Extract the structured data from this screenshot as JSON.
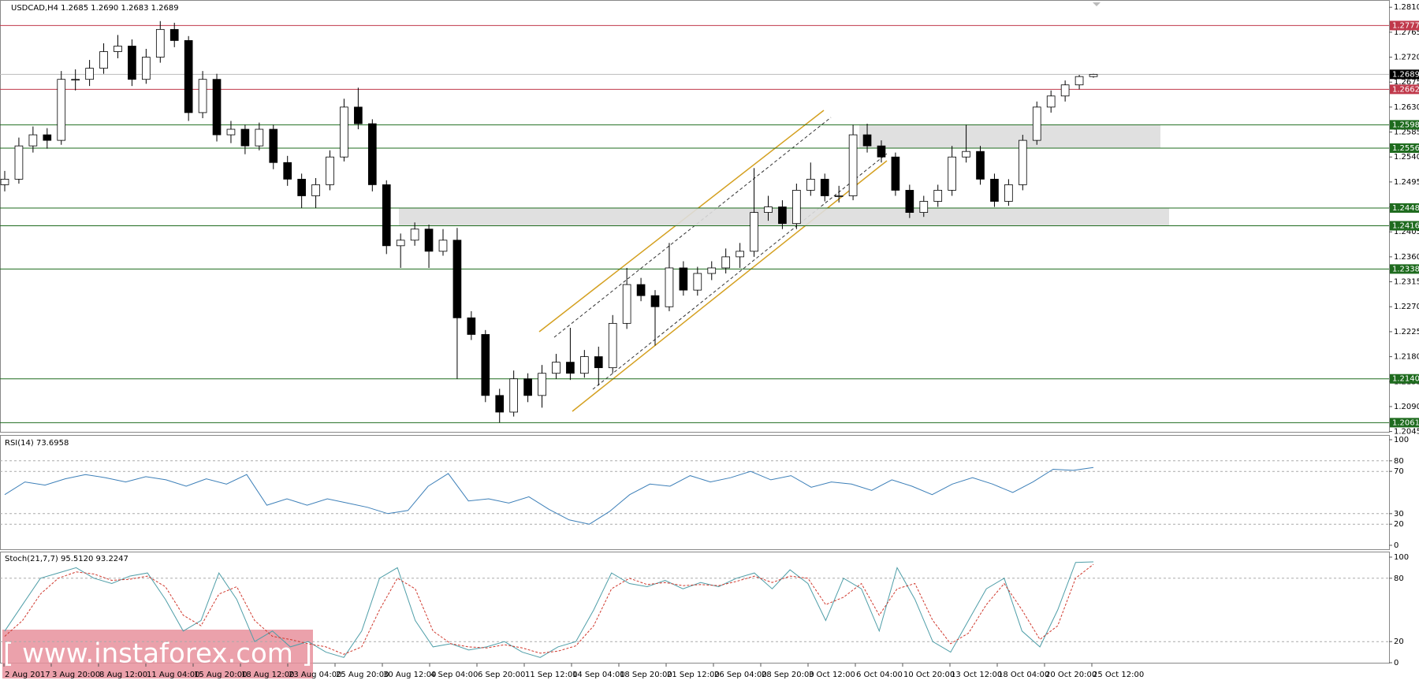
{
  "chart_data": [
    {
      "type": "candlestick",
      "title": "USDCAD,H4  1.2685 1.2690 1.2683 1.2689",
      "ylim": [
        1.2045,
        1.281
      ],
      "yticks": [
        {
          "value": 1.281,
          "label": "1.2810"
        },
        1.2765,
        {
          "value": 1.272,
          "label": "1.2720"
        },
        1.2675,
        {
          "value": 1.263,
          "label": "1.2630"
        },
        1.2585,
        {
          "value": 1.254,
          "label": "1.2540"
        },
        1.2495,
        {
          "value": 1.245,
          "label": "1.2450"
        },
        1.2405,
        {
          "value": 1.236,
          "label": "1.2360"
        },
        1.2315,
        {
          "value": 1.227,
          "label": "1.2270"
        },
        1.2225,
        {
          "value": 1.218,
          "label": "1.2180"
        },
        1.2135,
        {
          "value": 1.209,
          "label": "1.2090"
        },
        1.2045
      ],
      "levels": [
        {
          "value": 1.2777,
          "color": "#c0394b"
        },
        {
          "value": 1.2662,
          "color": "#c0394b"
        },
        {
          "value": 1.2689,
          "color": "#000000"
        },
        {
          "value": 1.2598,
          "color": "#1e6b1e"
        },
        {
          "value": 1.2556,
          "color": "#1e6b1e"
        },
        {
          "value": 1.2448,
          "color": "#1e6b1e"
        },
        {
          "value": 1.2416,
          "color": "#1e6b1e"
        },
        {
          "value": 1.2338,
          "color": "#1e6b1e"
        },
        {
          "value": 1.214,
          "label": "1.2140",
          "color": "#1e6b1e"
        },
        {
          "value": 1.2061,
          "color": "#1e6b1e"
        }
      ],
      "zones": [
        [
          1.2556,
          1.2598
        ],
        [
          1.2416,
          1.2448
        ]
      ],
      "candles": [
        [
          1.249,
          1.2515,
          1.2478,
          1.25
        ],
        [
          1.25,
          1.2575,
          1.2492,
          1.256
        ],
        [
          1.256,
          1.2595,
          1.2548,
          1.258
        ],
        [
          1.258,
          1.2592,
          1.2555,
          1.257
        ],
        [
          1.257,
          1.2695,
          1.2562,
          1.268
        ],
        [
          1.268,
          1.2698,
          1.266,
          1.268
        ],
        [
          1.268,
          1.2715,
          1.2668,
          1.27
        ],
        [
          1.27,
          1.2745,
          1.269,
          1.273
        ],
        [
          1.273,
          1.276,
          1.2718,
          1.274
        ],
        [
          1.274,
          1.2752,
          1.2668,
          1.268
        ],
        [
          1.268,
          1.2735,
          1.2672,
          1.272
        ],
        [
          1.272,
          1.2785,
          1.271,
          1.277
        ],
        [
          1.277,
          1.2782,
          1.2738,
          1.275
        ],
        [
          1.275,
          1.2758,
          1.2605,
          1.262
        ],
        [
          1.262,
          1.2695,
          1.261,
          1.268
        ],
        [
          1.268,
          1.269,
          1.2568,
          1.258
        ],
        [
          1.258,
          1.2605,
          1.2565,
          1.259
        ],
        [
          1.259,
          1.2598,
          1.2545,
          1.256
        ],
        [
          1.256,
          1.2602,
          1.2552,
          1.259
        ],
        [
          1.259,
          1.2598,
          1.2518,
          1.253
        ],
        [
          1.253,
          1.2542,
          1.2488,
          1.25
        ],
        [
          1.25,
          1.251,
          1.2448,
          1.247
        ],
        [
          1.247,
          1.2502,
          1.2448,
          1.249
        ],
        [
          1.249,
          1.2552,
          1.248,
          1.254
        ],
        [
          1.254,
          1.2645,
          1.2532,
          1.263
        ],
        [
          1.263,
          1.2665,
          1.259,
          1.26
        ],
        [
          1.26,
          1.2608,
          1.2478,
          1.249
        ],
        [
          1.249,
          1.2498,
          1.2365,
          1.238
        ],
        [
          1.238,
          1.2402,
          1.234,
          1.239
        ],
        [
          1.239,
          1.2422,
          1.238,
          1.241
        ],
        [
          1.241,
          1.2418,
          1.234,
          1.237
        ],
        [
          1.237,
          1.241,
          1.2362,
          1.239
        ],
        [
          1.239,
          1.2412,
          1.214,
          1.225
        ],
        [
          1.225,
          1.2262,
          1.221,
          1.222
        ],
        [
          1.222,
          1.2228,
          1.2098,
          1.211
        ],
        [
          1.211,
          1.2122,
          1.2061,
          1.208
        ],
        [
          1.208,
          1.2155,
          1.2072,
          1.214
        ],
        [
          1.214,
          1.215,
          1.2098,
          1.211
        ],
        [
          1.211,
          1.2165,
          1.2088,
          1.215
        ],
        [
          1.215,
          1.2185,
          1.214,
          1.217
        ],
        [
          1.217,
          1.2232,
          1.2138,
          1.215
        ],
        [
          1.215,
          1.2192,
          1.2142,
          1.218
        ],
        [
          1.218,
          1.2198,
          1.2128,
          1.216
        ],
        [
          1.216,
          1.2255,
          1.215,
          1.224
        ],
        [
          1.224,
          1.234,
          1.223,
          1.231
        ],
        [
          1.231,
          1.2322,
          1.228,
          1.229
        ],
        [
          1.229,
          1.23,
          1.22,
          1.227
        ],
        [
          1.227,
          1.2385,
          1.2262,
          1.234
        ],
        [
          1.234,
          1.2352,
          1.229,
          1.23
        ],
        [
          1.23,
          1.2342,
          1.229,
          1.233
        ],
        [
          1.233,
          1.2352,
          1.2318,
          1.234
        ],
        [
          1.234,
          1.2375,
          1.233,
          1.236
        ],
        [
          1.236,
          1.2385,
          1.234,
          1.237
        ],
        [
          1.237,
          1.252,
          1.236,
          1.244
        ],
        [
          1.244,
          1.247,
          1.2425,
          1.245
        ],
        [
          1.245,
          1.2462,
          1.241,
          1.242
        ],
        [
          1.242,
          1.2492,
          1.241,
          1.248
        ],
        [
          1.248,
          1.253,
          1.247,
          1.25
        ],
        [
          1.25,
          1.251,
          1.246,
          1.247
        ],
        [
          1.247,
          1.2488,
          1.2458,
          1.247
        ],
        [
          1.247,
          1.2598,
          1.2462,
          1.258
        ],
        [
          1.258,
          1.26,
          1.2548,
          1.256
        ],
        [
          1.256,
          1.257,
          1.253,
          1.254
        ],
        [
          1.254,
          1.2548,
          1.247,
          1.248
        ],
        [
          1.248,
          1.249,
          1.243,
          1.244
        ],
        [
          1.244,
          1.247,
          1.2432,
          1.246
        ],
        [
          1.246,
          1.249,
          1.245,
          1.248
        ],
        [
          1.248,
          1.256,
          1.247,
          1.254
        ],
        [
          1.254,
          1.2598,
          1.253,
          1.255
        ],
        [
          1.255,
          1.256,
          1.249,
          1.25
        ],
        [
          1.25,
          1.251,
          1.245,
          1.246
        ],
        [
          1.246,
          1.25,
          1.2452,
          1.249
        ],
        [
          1.249,
          1.258,
          1.248,
          1.257
        ],
        [
          1.257,
          1.264,
          1.2562,
          1.263
        ],
        [
          1.263,
          1.266,
          1.262,
          1.265
        ],
        [
          1.265,
          1.2678,
          1.264,
          1.267
        ],
        [
          1.267,
          1.2688,
          1.2662,
          1.2685
        ],
        [
          1.2685,
          1.269,
          1.2683,
          1.2689
        ]
      ]
    },
    {
      "type": "line",
      "title": "RSI(14) 73.6958",
      "ylim": [
        0,
        100
      ],
      "yticks": [
        100,
        80,
        70,
        30,
        20,
        0
      ],
      "series": [
        {
          "color": "#3c7fb8",
          "values": [
            48,
            60,
            57,
            63,
            67,
            64,
            60,
            65,
            62,
            56,
            63,
            58,
            67,
            38,
            44,
            38,
            44,
            40,
            36,
            30,
            33,
            56,
            68,
            42,
            44,
            40,
            46,
            34,
            24,
            20,
            32,
            48,
            58,
            56,
            66,
            60,
            64,
            70,
            62,
            66,
            55,
            60,
            58,
            52,
            62,
            56,
            48,
            58,
            64,
            58,
            50,
            60,
            72,
            71,
            73.6958
          ]
        }
      ]
    },
    {
      "type": "line",
      "title": "Stoch(21,7,7) 95.5120 93.2247",
      "ylim": [
        0,
        100
      ],
      "yticks": [
        100,
        80,
        20,
        0
      ],
      "series": [
        {
          "color": "#4f9ea8",
          "values": [
            30,
            55,
            80,
            85,
            90,
            80,
            75,
            82,
            85,
            60,
            30,
            40,
            85,
            60,
            20,
            30,
            15,
            20,
            10,
            5,
            30,
            80,
            90,
            40,
            15,
            18,
            12,
            15,
            20,
            10,
            5,
            15,
            20,
            50,
            85,
            75,
            72,
            78,
            70,
            76,
            72,
            80,
            85,
            70,
            88,
            75,
            40,
            80,
            70,
            30,
            90,
            60,
            20,
            10,
            40,
            70,
            80,
            30,
            15,
            50,
            95,
            95.512
          ]
        },
        {
          "color": "#d0392e",
          "dashed": true,
          "values": [
            25,
            40,
            65,
            80,
            86,
            84,
            78,
            79,
            82,
            72,
            45,
            35,
            65,
            72,
            40,
            25,
            22,
            18,
            15,
            8,
            15,
            50,
            80,
            70,
            30,
            18,
            15,
            14,
            17,
            14,
            9,
            11,
            16,
            35,
            70,
            80,
            74,
            76,
            73,
            74,
            73,
            77,
            82,
            76,
            82,
            80,
            55,
            62,
            75,
            45,
            70,
            75,
            40,
            18,
            28,
            55,
            75,
            50,
            22,
            35,
            80,
            93.2247
          ]
        }
      ]
    }
  ],
  "time_labels": [
    "2 Aug 2017",
    "3 Aug 20:00",
    "8 Aug 12:00",
    "11 Aug 04:00",
    "15 Aug 20:00",
    "18 Aug 12:00",
    "23 Aug 04:00",
    "25 Aug 20:00",
    "30 Aug 12:00",
    "4 Sep 04:00",
    "6 Sep 20:00",
    "11 Sep 12:00",
    "14 Sep 04:00",
    "18 Sep 20:00",
    "21 Sep 12:00",
    "26 Sep 04:00",
    "28 Sep 20:00",
    "3 Oct 12:00",
    "6 Oct 04:00",
    "10 Oct 20:00",
    "13 Oct 12:00",
    "18 Oct 04:00",
    "20 Oct 20:00",
    "25 Oct 12:00"
  ],
  "watermark": "[ www.instaforex.com ]"
}
